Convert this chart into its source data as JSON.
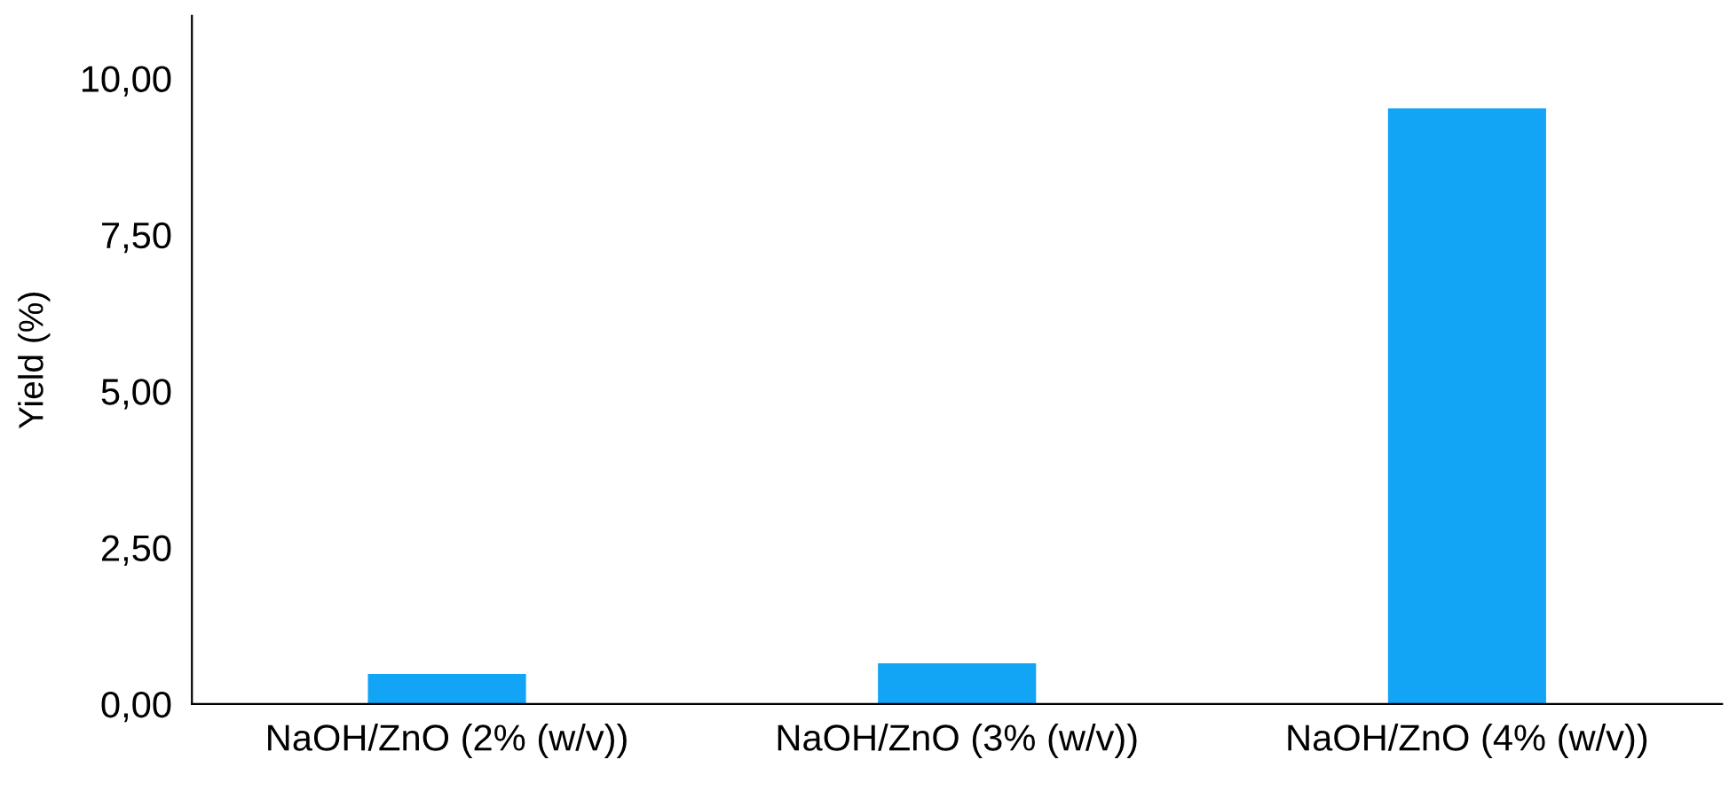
{
  "chart_data": {
    "type": "bar",
    "ylabel": "Yield (%)",
    "categories": [
      "NaOH/ZnO (2% (w/v))",
      "NaOH/ZnO (3% (w/v))",
      "NaOH/ZnO (4% (w/v))"
    ],
    "values": [
      0.48,
      0.65,
      9.52
    ],
    "color": "#12a4f5",
    "ylim": [
      0,
      11
    ],
    "yticks": [
      {
        "value": 0,
        "label": "0,00"
      },
      {
        "value": 2.5,
        "label": "2,50"
      },
      {
        "value": 5,
        "label": "5,00"
      },
      {
        "value": 7.5,
        "label": "7,50"
      },
      {
        "value": 10,
        "label": "10,00"
      }
    ],
    "grid": false,
    "legend": false
  }
}
